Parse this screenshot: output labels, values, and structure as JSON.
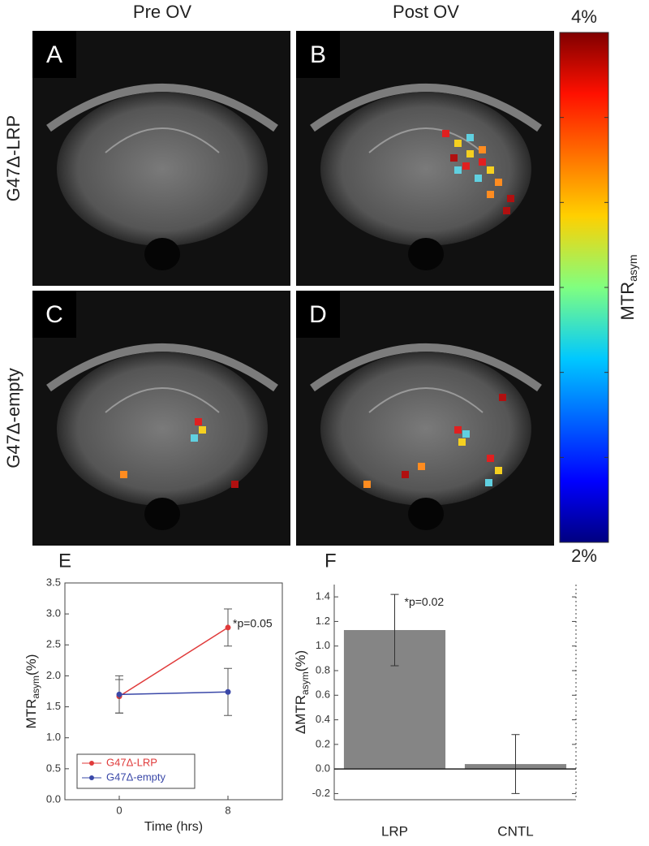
{
  "figure": {
    "column_headers": [
      "Pre OV",
      "Post OV"
    ],
    "row_labels": [
      "G47Δ-LRP",
      "G47Δ-empty"
    ],
    "panel_labels": [
      "A",
      "B",
      "C",
      "D"
    ],
    "colorbar": {
      "label": "MTR",
      "label_sub": "asym",
      "ticks": [
        {
          "value": 4,
          "label": "4%"
        },
        {
          "value": 2,
          "label": "2%"
        }
      ]
    }
  },
  "chart_data": [
    {
      "type": "line",
      "title": "E",
      "x": [
        0,
        8
      ],
      "xlim": [
        -4,
        12
      ],
      "xticks": [
        0,
        8
      ],
      "ylim": [
        0,
        3.5
      ],
      "yticks": [
        {
          "value": 0,
          "label": "0.0"
        },
        0.5,
        {
          "value": 1,
          "label": "1.0"
        },
        1.5,
        {
          "value": 2,
          "label": "2.0"
        },
        2.5,
        {
          "value": 3,
          "label": "3.0"
        },
        3.5
      ],
      "x_label": "Time (hrs)",
      "y_label": "MTR",
      "y_label_sub": "asym",
      "y_label_unit": "(%)",
      "annotation": "*p=0.05",
      "legend": "lower left",
      "series": [
        {
          "name": "G47Δ-LRP",
          "color": "#e03a3a",
          "values": [
            1.67,
            2.78
          ],
          "errors": [
            0.27,
            0.3
          ]
        },
        {
          "name": "G47Δ-empty",
          "color": "#3a48a8",
          "values": [
            1.7,
            1.74
          ],
          "errors": [
            0.3,
            0.38
          ]
        }
      ]
    },
    {
      "type": "bar",
      "title": "F",
      "categories": [
        "LRP",
        "CNTL"
      ],
      "values": [
        1.13,
        0.04
      ],
      "errors": [
        0.29,
        0.24
      ],
      "color": "#858585",
      "ylim": [
        -0.25,
        1.5
      ],
      "yticks": [
        -0.2,
        {
          "value": 0,
          "label": "0.0"
        },
        0.2,
        0.4,
        0.6,
        0.8,
        {
          "value": 1,
          "label": "1.0"
        },
        1.2,
        1.4
      ],
      "y_label": "ΔMTR",
      "y_label_sub": "asym",
      "y_label_unit": "(%)",
      "annotation": "*p=0.02"
    }
  ]
}
